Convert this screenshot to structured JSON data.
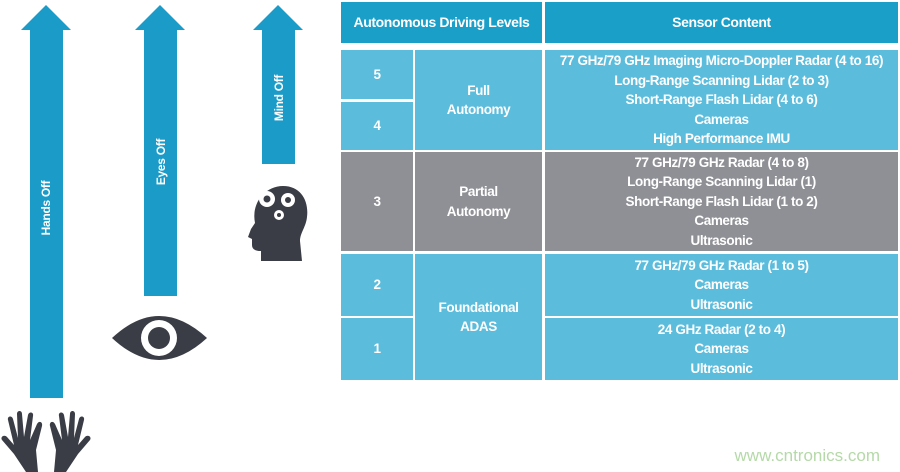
{
  "arrows": [
    {
      "label": "Hands Off",
      "icon": "hands-icon"
    },
    {
      "label": "Eyes Off",
      "icon": "eye-icon"
    },
    {
      "label": "Mind Off",
      "icon": "head-gears-icon"
    }
  ],
  "table": {
    "headers": [
      "Autonomous Driving Levels",
      "Sensor Content"
    ],
    "levels": [
      "5",
      "4",
      "3",
      "2",
      "1"
    ],
    "groups": [
      {
        "name_lines": [
          "Full",
          "Autonomy"
        ],
        "sensors": [
          "77 GHz/79 GHz Imaging Micro-Doppler Radar (4 to 16)",
          "Long-Range Scanning Lidar (2 to 3)",
          "Short-Range Flash Lidar (4 to 6)",
          "Cameras",
          "High Performance IMU"
        ]
      },
      {
        "name_lines": [
          "Partial",
          "Autonomy"
        ],
        "sensors": [
          "77 GHz/79 GHz Radar (4 to 8)",
          "Long-Range Scanning Lidar (1)",
          "Short-Range Flash Lidar (1 to 2)",
          "Cameras",
          "Ultrasonic"
        ]
      },
      {
        "name_lines": [
          "Foundational",
          "ADAS"
        ]
      }
    ],
    "level2_sensors": [
      "77 GHz/79 GHz Radar (1 to 5)",
      "Cameras",
      "Ultrasonic"
    ],
    "level1_sensors": [
      "24 GHz Radar (2 to 4)",
      "Cameras",
      "Ultrasonic"
    ]
  },
  "colors": {
    "header": "#1a9fc9",
    "light_row": "#5bbcdc",
    "gray_row": "#8f9095",
    "arrow": "#1a9bc8",
    "icon": "#3a3d45"
  },
  "watermark": "www.cntronics.com"
}
